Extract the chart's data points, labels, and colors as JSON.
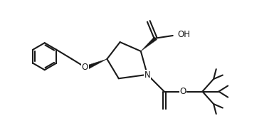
{
  "background_color": "#ffffff",
  "line_color": "#1a1a1a",
  "line_width": 1.5,
  "fig_width": 3.92,
  "fig_height": 1.84,
  "dpi": 100,
  "xlim": [
    0,
    10
  ],
  "ylim": [
    0,
    5
  ]
}
